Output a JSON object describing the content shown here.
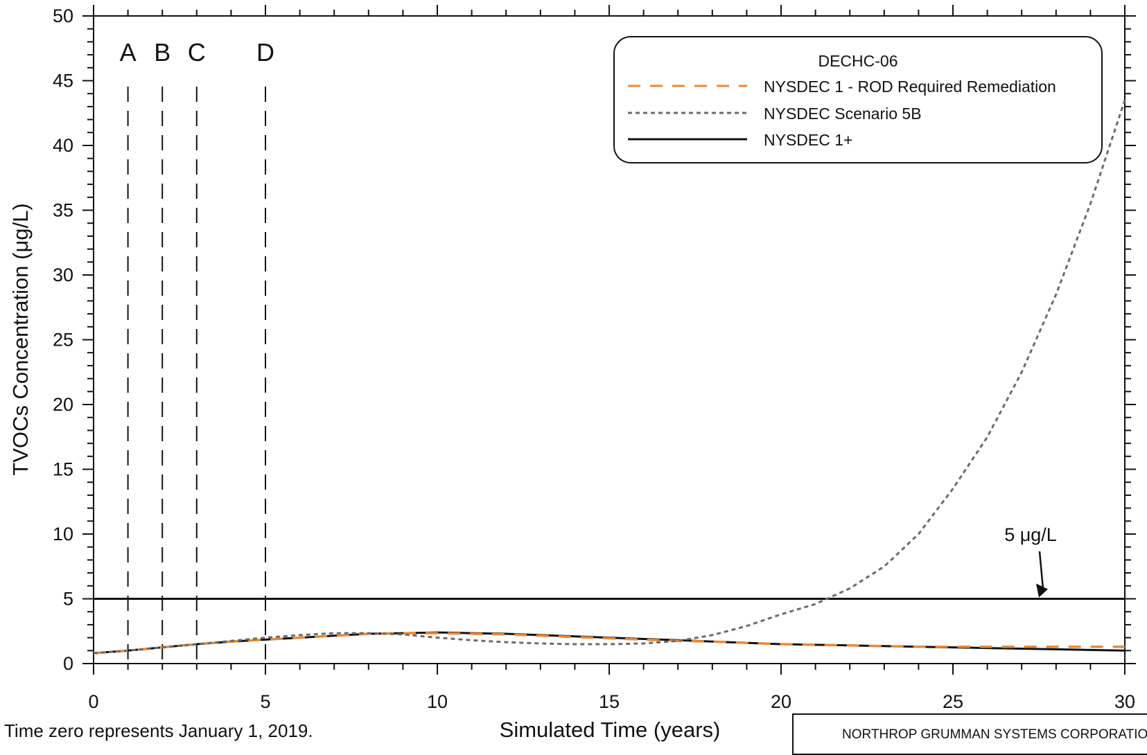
{
  "chart_data": {
    "type": "line",
    "title": "",
    "xlabel": "Simulated Time (years)",
    "ylabel": "TVOCs Concentration (μg/L)",
    "xlim": [
      0,
      30
    ],
    "ylim": [
      0,
      50
    ],
    "xticks": [
      "0",
      "5",
      "10",
      "15",
      "20",
      "25",
      "30"
    ],
    "yticks": [
      "0",
      "5",
      "10",
      "15",
      "20",
      "25",
      "30",
      "35",
      "40",
      "45",
      "50"
    ],
    "grid": false,
    "legend": {
      "title": "DECHC-06",
      "placement": "top-right",
      "entries": [
        "NYSDEC 1 - ROD Required Remediation",
        "NYSDEC Scenario 5B",
        "NYSDEC 1+"
      ]
    },
    "series": [
      {
        "name": "NYSDEC 1 - ROD Required Remediation",
        "color": "#e8893a",
        "style": "dashed",
        "x": [
          0,
          1,
          2,
          3,
          4,
          5,
          6,
          7,
          8,
          9,
          10,
          11,
          12,
          13,
          14,
          15,
          16,
          17,
          18,
          19,
          20,
          21,
          22,
          23,
          24,
          25,
          26,
          27,
          28,
          29,
          30
        ],
        "y": [
          0.8,
          1.0,
          1.25,
          1.5,
          1.7,
          1.85,
          2.0,
          2.15,
          2.3,
          2.35,
          2.35,
          2.3,
          2.25,
          2.15,
          2.05,
          1.95,
          1.85,
          1.75,
          1.7,
          1.6,
          1.5,
          1.45,
          1.4,
          1.35,
          1.3,
          1.3,
          1.3,
          1.3,
          1.3,
          1.3,
          1.3
        ]
      },
      {
        "name": "NYSDEC Scenario 5B",
        "color": "#6b6b6b",
        "style": "dotted",
        "x": [
          0,
          1,
          2,
          3,
          4,
          5,
          6,
          7,
          8,
          9,
          10,
          11,
          12,
          13,
          14,
          15,
          16,
          17,
          18,
          19,
          20,
          21,
          22,
          23,
          24,
          25,
          26,
          27,
          28,
          29,
          30
        ],
        "y": [
          0.8,
          1.0,
          1.25,
          1.5,
          1.75,
          2.0,
          2.2,
          2.35,
          2.35,
          2.25,
          2.0,
          1.8,
          1.65,
          1.55,
          1.5,
          1.5,
          1.55,
          1.75,
          2.2,
          2.9,
          3.8,
          4.6,
          5.8,
          7.5,
          10.0,
          13.5,
          17.5,
          22.5,
          28.5,
          35.5,
          43.5
        ]
      },
      {
        "name": "NYSDEC 1+",
        "color": "#111111",
        "style": "solid",
        "x": [
          0,
          1,
          2,
          3,
          4,
          5,
          6,
          7,
          8,
          9,
          10,
          11,
          12,
          13,
          14,
          15,
          16,
          17,
          18,
          19,
          20,
          21,
          22,
          23,
          24,
          25,
          26,
          27,
          28,
          29,
          30
        ],
        "y": [
          0.8,
          1.0,
          1.25,
          1.5,
          1.7,
          1.85,
          2.0,
          2.15,
          2.3,
          2.35,
          2.4,
          2.35,
          2.3,
          2.2,
          2.1,
          2.0,
          1.9,
          1.8,
          1.7,
          1.6,
          1.5,
          1.45,
          1.4,
          1.35,
          1.3,
          1.25,
          1.2,
          1.15,
          1.1,
          1.05,
          1.0
        ]
      }
    ],
    "reference_line": {
      "y": 5,
      "label": "5 μg/L"
    },
    "phase_markers": [
      {
        "label": "A",
        "x": 1
      },
      {
        "label": "B",
        "x": 2
      },
      {
        "label": "C",
        "x": 3
      },
      {
        "label": "D",
        "x": 5
      }
    ]
  },
  "footnote": "Time zero represents January 1, 2019.",
  "company": "NORTHROP GRUMMAN SYSTEMS CORPORATION"
}
